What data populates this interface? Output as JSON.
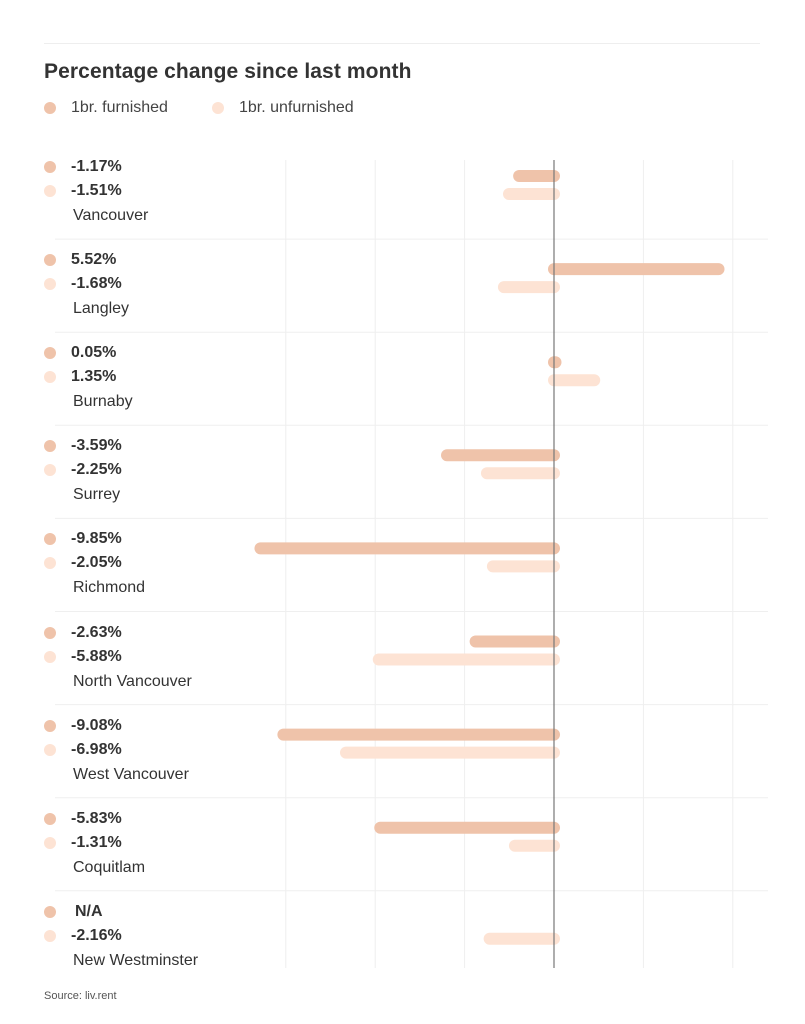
{
  "chart_data": {
    "type": "bar",
    "orientation": "horizontal",
    "title": "Percentage change since last month",
    "xlabel": "",
    "ylabel": "",
    "unit": "%",
    "xlim": [
      -10.5,
      7.5
    ],
    "gridlines_at": [
      -9,
      -6,
      -3,
      0,
      3,
      6
    ],
    "grid": true,
    "legend_position": "top-left",
    "categories": [
      "Vancouver",
      "Langley",
      "Burnaby",
      "Surrey",
      "Richmond",
      "North Vancouver",
      "West Vancouver",
      "Coquitlam",
      "New Westminster"
    ],
    "series": [
      {
        "name": "1br. furnished",
        "color": "#EFC3AA",
        "values": [
          -1.17,
          5.52,
          0.05,
          -3.59,
          -9.85,
          -2.63,
          -9.08,
          -5.83,
          null
        ],
        "labels": [
          "-1.17%",
          "5.52%",
          "0.05%",
          "-3.59%",
          "-9.85%",
          "-2.63%",
          "-9.08%",
          "-5.83%",
          "N/A"
        ]
      },
      {
        "name": "1br. unfurnished",
        "color": "#FDE3D4",
        "values": [
          -1.51,
          -1.68,
          1.35,
          -2.25,
          -2.05,
          -5.88,
          -6.98,
          -1.31,
          -2.16
        ],
        "labels": [
          "-1.51%",
          "-1.68%",
          "1.35%",
          "-2.25%",
          "-2.05%",
          "-5.88%",
          "-6.98%",
          "-1.31%",
          "-2.16%"
        ]
      }
    ]
  },
  "legend": [
    {
      "label": "1br. furnished",
      "color": "#EFC3AA"
    },
    {
      "label": "1br. unfurnished",
      "color": "#FDE3D4"
    }
  ],
  "source": "Source: liv.rent"
}
